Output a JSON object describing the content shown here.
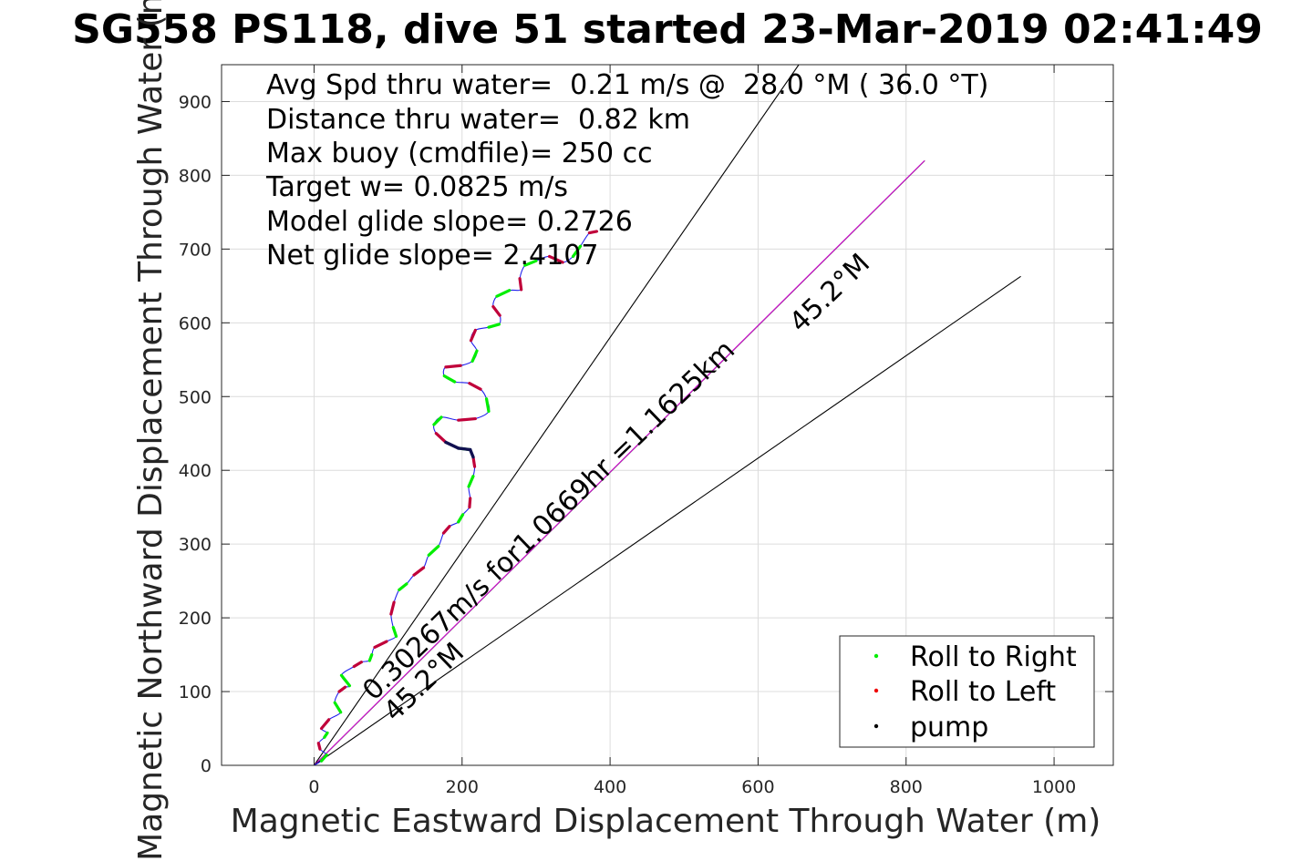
{
  "chart_data": {
    "type": "line",
    "title": "SG558 PS118, dive 51 started 23-Mar-2019 02:41:49",
    "xlabel": "Magnetic Eastward Displacement Through Water (m)",
    "ylabel": "Magnetic Northward Displacement Through Water (m)",
    "xlim": [
      -125,
      1080
    ],
    "ylim": [
      0,
      950
    ],
    "xticks": [
      0,
      200,
      400,
      600,
      800,
      1000
    ],
    "yticks": [
      0,
      100,
      200,
      300,
      400,
      500,
      600,
      700,
      800,
      900
    ],
    "grid": true,
    "legend_position": "bottom-right",
    "info_lines": [
      "Avg Spd thru water=  0.21 m/s @  28.0 °M ( 36.0 °T)",
      "Distance thru water=  0.82 km",
      "Max buoy (cmdfile)= 250 cc",
      "Target w= 0.0825 m/s",
      "Model glide slope= 0.2726",
      "Net glide slope= 2.4107"
    ],
    "annotations": {
      "course_label_upper": "45.2°M",
      "course_label_lower": "45.2°M",
      "speed_label": "0.30267m/s for1.0669hr =1.1625km"
    },
    "track": [
      [
        0,
        0
      ],
      [
        10,
        6
      ],
      [
        17,
        14
      ],
      [
        8,
        22
      ],
      [
        6,
        30
      ],
      [
        14,
        38
      ],
      [
        18,
        44
      ],
      [
        10,
        50
      ],
      [
        20,
        62
      ],
      [
        36,
        72
      ],
      [
        28,
        85
      ],
      [
        34,
        100
      ],
      [
        42,
        106
      ],
      [
        48,
        108
      ],
      [
        37,
        122
      ],
      [
        54,
        134
      ],
      [
        64,
        140
      ],
      [
        75,
        142
      ],
      [
        78,
        150
      ],
      [
        82,
        160
      ],
      [
        98,
        168
      ],
      [
        111,
        175
      ],
      [
        107,
        187
      ],
      [
        104,
        205
      ],
      [
        108,
        221
      ],
      [
        115,
        238
      ],
      [
        125,
        246
      ],
      [
        135,
        258
      ],
      [
        148,
        268
      ],
      [
        155,
        285
      ],
      [
        168,
        297
      ],
      [
        175,
        315
      ],
      [
        183,
        324
      ],
      [
        195,
        330
      ],
      [
        201,
        340
      ],
      [
        210,
        350
      ],
      [
        211,
        362
      ],
      [
        209,
        378
      ],
      [
        215,
        392
      ],
      [
        217,
        405
      ],
      [
        215,
        418
      ],
      [
        211,
        428
      ],
      [
        195,
        430
      ],
      [
        178,
        438
      ],
      [
        165,
        450
      ],
      [
        162,
        462
      ],
      [
        172,
        472
      ],
      [
        195,
        468
      ],
      [
        218,
        470
      ],
      [
        236,
        480
      ],
      [
        233,
        497
      ],
      [
        225,
        510
      ],
      [
        210,
        518
      ],
      [
        190,
        520
      ],
      [
        176,
        528
      ],
      [
        178,
        540
      ],
      [
        198,
        542
      ],
      [
        214,
        548
      ],
      [
        220,
        562
      ],
      [
        212,
        576
      ],
      [
        218,
        590
      ],
      [
        236,
        594
      ],
      [
        250,
        598
      ],
      [
        251,
        610
      ],
      [
        242,
        622
      ],
      [
        247,
        636
      ],
      [
        264,
        644
      ],
      [
        280,
        645
      ],
      [
        278,
        660
      ],
      [
        285,
        678
      ],
      [
        300,
        684
      ],
      [
        318,
        690
      ],
      [
        336,
        682
      ],
      [
        350,
        690
      ],
      [
        360,
        704
      ],
      [
        372,
        722
      ],
      [
        382,
        724
      ]
    ],
    "lines": [
      {
        "name": "heading upper",
        "x": [
          0,
          655
        ],
        "y": [
          0,
          950
        ]
      },
      {
        "name": "speed line",
        "x": [
          0,
          825
        ],
        "y": [
          0,
          820
        ]
      },
      {
        "name": "heading lower",
        "x": [
          0,
          955
        ],
        "y": [
          0,
          663
        ]
      }
    ],
    "series": [
      {
        "name": "Roll to Right",
        "color": "#00ee00"
      },
      {
        "name": "Roll to Left",
        "color": "#ee0000"
      },
      {
        "name": "pump",
        "color": "#000000"
      }
    ]
  }
}
